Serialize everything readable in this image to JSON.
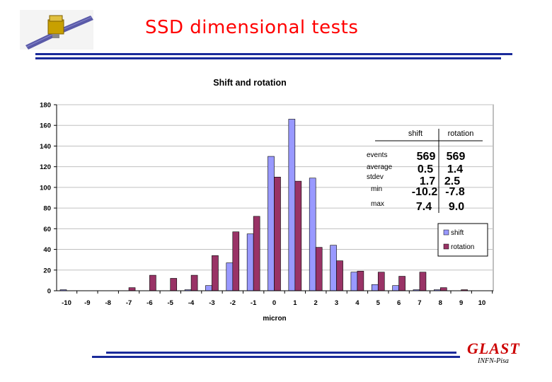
{
  "slide": {
    "title": "SSD dimensional tests",
    "footer_logo": "GLAST",
    "footer_sub": "INFN-Pisa"
  },
  "colors": {
    "title": "#ff0000",
    "rule": "#1a2a9a",
    "shift": "#9999ff",
    "rotation": "#993366",
    "plot_bg": "#ffffff",
    "grid": "#c0c0c0"
  },
  "icons": [
    "satellite-icon"
  ],
  "chart_data": {
    "type": "bar",
    "title": "Shift and rotation",
    "xlabel": "micron",
    "ylabel": "",
    "ylim": [
      0,
      180
    ],
    "yticks": [
      0,
      20,
      40,
      60,
      80,
      100,
      120,
      140,
      160,
      180
    ],
    "grid": true,
    "legend_position": "bottom-right",
    "categories": [
      "-10",
      "-9",
      "-8",
      "-7",
      "-6",
      "-5",
      "-4",
      "-3",
      "-2",
      "-1",
      "0",
      "1",
      "2",
      "3",
      "4",
      "5",
      "6",
      "7",
      "8",
      "9",
      "10"
    ],
    "series": [
      {
        "name": "shift",
        "values": [
          1,
          0,
          0,
          0,
          0,
          0,
          1,
          5,
          27,
          55,
          130,
          166,
          109,
          44,
          18,
          6,
          5,
          1,
          1,
          0,
          0
        ]
      },
      {
        "name": "rotation",
        "values": [
          0,
          0,
          0,
          3,
          15,
          12,
          15,
          34,
          57,
          72,
          110,
          106,
          42,
          29,
          19,
          18,
          14,
          18,
          3,
          1,
          0
        ]
      }
    ],
    "stats_table": {
      "columns": [
        "shift",
        "rotation"
      ],
      "rows": [
        {
          "label": "events",
          "shift": "569",
          "rotation": "569"
        },
        {
          "label": "average",
          "shift": "0.5",
          "rotation": "1.4"
        },
        {
          "label": "stdev",
          "shift": "1.7",
          "rotation": "2.5"
        },
        {
          "label": "min",
          "shift": "-10.2",
          "rotation": "-7.8"
        },
        {
          "label": "max",
          "shift": "7.4",
          "rotation": "9.0"
        }
      ]
    }
  }
}
